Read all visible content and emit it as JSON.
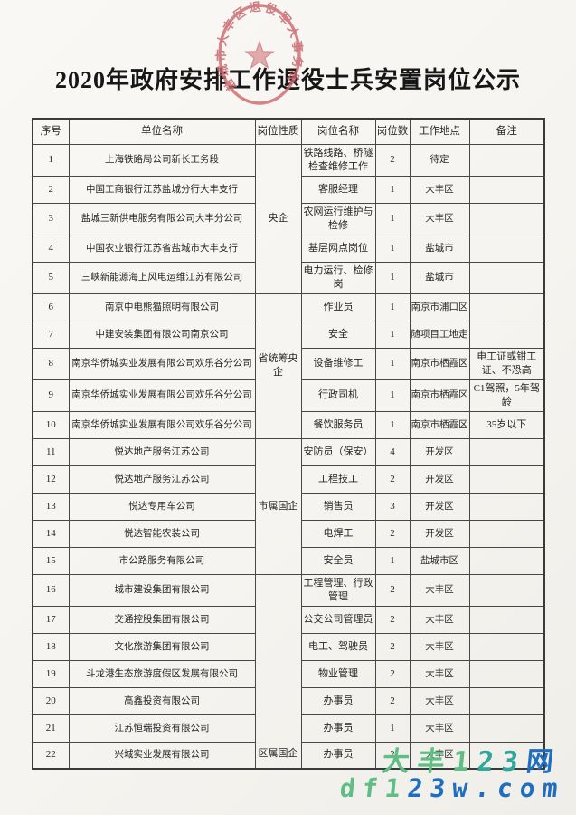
{
  "title": "2020年政府安排工作退役士兵安置岗位公示",
  "seal": {
    "text": "盐城市大丰区退役军人事务局",
    "color": "#cf6b6f",
    "star_color": "#d68a8e"
  },
  "table": {
    "headers": [
      "序号",
      "单位名称",
      "岗位性质",
      "岗位名称",
      "岗位数",
      "工作地点",
      "备注"
    ],
    "groups": [
      {
        "label": "央企",
        "start": 1,
        "end": 5,
        "valign": "middle"
      },
      {
        "label": "省统筹央企",
        "start": 6,
        "end": 10,
        "valign": "middle"
      },
      {
        "label": "市属国企",
        "start": 11,
        "end": 15,
        "valign": "middle"
      },
      {
        "label": "区属国企",
        "start": 16,
        "end": 22,
        "valign": "bottom"
      }
    ],
    "rows": [
      {
        "no": "1",
        "unit": "上海铁路局公司新长工务段",
        "job": "铁路线路、桥隧检查维修工作",
        "count": "2",
        "location": "待定",
        "note": ""
      },
      {
        "no": "2",
        "unit": "中国工商银行江苏盐城分行大丰支行",
        "job": "客服经理",
        "count": "1",
        "location": "大丰区",
        "note": ""
      },
      {
        "no": "3",
        "unit": "盐城三新供电服务有限公司大丰分公司",
        "job": "农网运行维护与检修",
        "count": "1",
        "location": "大丰区",
        "note": ""
      },
      {
        "no": "4",
        "unit": "中国农业银行江苏省盐城市大丰支行",
        "job": "基层网点岗位",
        "count": "1",
        "location": "盐城市",
        "note": ""
      },
      {
        "no": "5",
        "unit": "三峡新能源海上风电运维江苏有限公司",
        "job": "电力运行、检修岗",
        "count": "1",
        "location": "盐城市",
        "note": ""
      },
      {
        "no": "6",
        "unit": "南京中电熊猫照明有限公司",
        "job": "作业员",
        "count": "1",
        "location": "南京市浦口区",
        "note": ""
      },
      {
        "no": "7",
        "unit": "中建安装集团有限公司南京公司",
        "job": "安全",
        "count": "1",
        "location": "随项目工地走",
        "note": ""
      },
      {
        "no": "8",
        "unit": "南京华侨城实业发展有限公司欢乐谷分公司",
        "job": "设备维修工",
        "count": "1",
        "location": "南京市栖霞区",
        "note": "电工证或钳工证、不恐高"
      },
      {
        "no": "9",
        "unit": "南京华侨城实业发展有限公司欢乐谷分公司",
        "job": "行政司机",
        "count": "1",
        "location": "南京市栖霞区",
        "note": "C1驾照，5年驾龄"
      },
      {
        "no": "10",
        "unit": "南京华侨城实业发展有限公司欢乐谷分公司",
        "job": "餐饮服务员",
        "count": "1",
        "location": "南京市栖霞区",
        "note": "35岁以下"
      },
      {
        "no": "11",
        "unit": "悦达地产服务江苏公司",
        "job": "安防员（保安）",
        "count": "4",
        "location": "开发区",
        "note": ""
      },
      {
        "no": "12",
        "unit": "悦达地产服务江苏公司",
        "job": "工程技工",
        "count": "2",
        "location": "开发区",
        "note": ""
      },
      {
        "no": "13",
        "unit": "悦达专用车公司",
        "job": "销售员",
        "count": "3",
        "location": "开发区",
        "note": ""
      },
      {
        "no": "14",
        "unit": "悦达智能农装公司",
        "job": "电焊工",
        "count": "2",
        "location": "开发区",
        "note": ""
      },
      {
        "no": "15",
        "unit": "市公路服务有限公司",
        "job": "安全员",
        "count": "1",
        "location": "盐城市区",
        "note": ""
      },
      {
        "no": "16",
        "unit": "城市建设集团有限公司",
        "job": "工程管理、行政管理",
        "count": "2",
        "location": "大丰区",
        "note": ""
      },
      {
        "no": "17",
        "unit": "交通控股集团有限公司",
        "job": "公交公司管理员",
        "count": "2",
        "location": "大丰区",
        "note": ""
      },
      {
        "no": "18",
        "unit": "文化旅游集团有限公司",
        "job": "电工、驾驶员",
        "count": "2",
        "location": "大丰区",
        "note": ""
      },
      {
        "no": "19",
        "unit": "斗龙港生态旅游度假区发展有限公司",
        "job": "物业管理",
        "count": "2",
        "location": "大丰区",
        "note": ""
      },
      {
        "no": "20",
        "unit": "高鑫投资有限公司",
        "job": "办事员",
        "count": "2",
        "location": "大丰区",
        "note": ""
      },
      {
        "no": "21",
        "unit": "江苏恒瑞投资有限公司",
        "job": "办事员",
        "count": "1",
        "location": "大丰区",
        "note": ""
      },
      {
        "no": "22",
        "unit": "兴城实业发展有限公司",
        "job": "办事员",
        "count": "2",
        "location": "大丰区",
        "note": ""
      }
    ]
  },
  "watermark": {
    "line1": [
      {
        "ch": "大",
        "color": "#5fbe84"
      },
      {
        "ch": "丰",
        "color": "#5fbe84"
      },
      {
        "ch": "1",
        "color": "#5fbe84"
      },
      {
        "ch": "2",
        "color": "#2fa89b"
      },
      {
        "ch": "3",
        "color": "#2fa89b"
      },
      {
        "ch": "网",
        "color": "#1f6ec0"
      }
    ],
    "line2": [
      {
        "ch": "d",
        "color": "#5fbe84"
      },
      {
        "ch": "f",
        "color": "#5fbe84"
      },
      {
        "ch": "1",
        "color": "#5fbe84"
      },
      {
        "ch": "2",
        "color": "#1f6ec0"
      },
      {
        "ch": "3",
        "color": "#1f6ec0"
      },
      {
        "ch": "w",
        "color": "#1f6ec0"
      },
      {
        "ch": ".",
        "color": "#1f6ec0"
      },
      {
        "ch": "c",
        "color": "#1f6ec0"
      },
      {
        "ch": "o",
        "color": "#1f6ec0"
      },
      {
        "ch": "m",
        "color": "#1f6ec0"
      }
    ]
  }
}
